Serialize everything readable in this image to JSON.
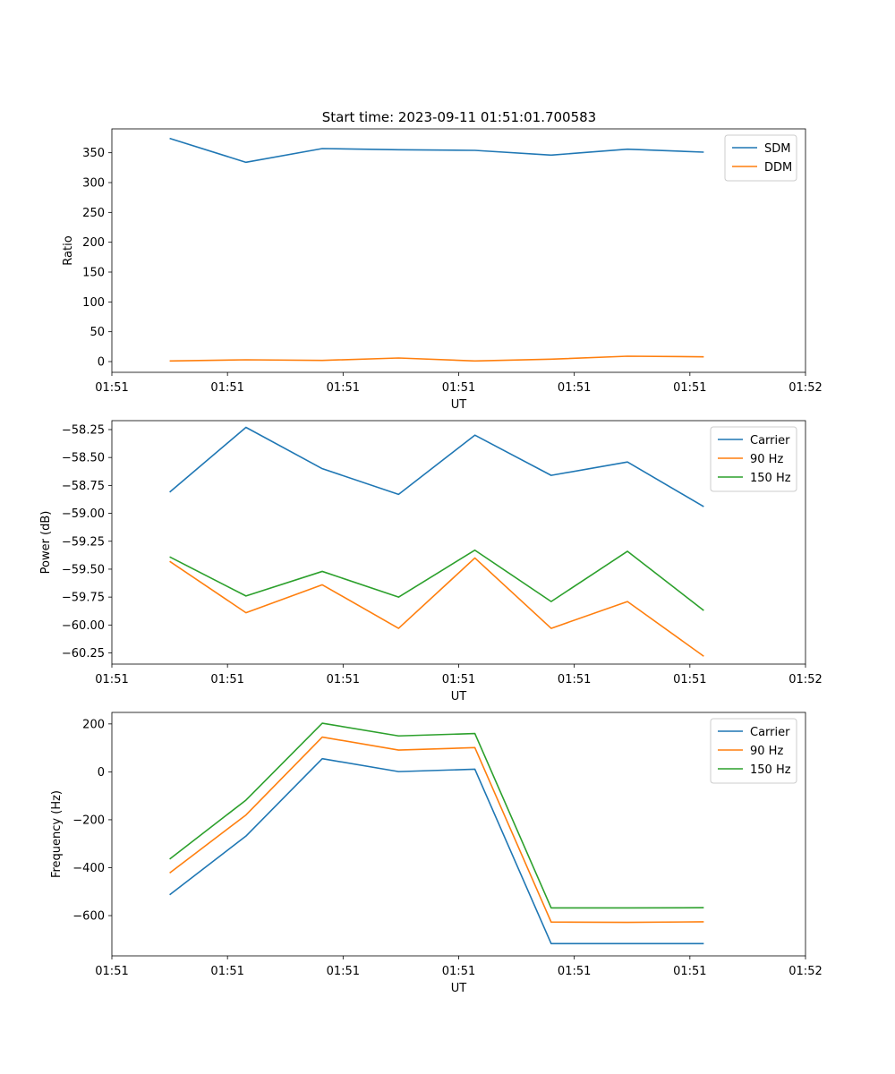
{
  "figure": {
    "title": "Start time: 2023-09-11 01:51:01.700583"
  },
  "chart_data": [
    {
      "type": "line",
      "title": "Start time: 2023-09-11 01:51:01.700583",
      "xlabel": "UT",
      "ylabel": "Ratio",
      "xticklabels": [
        "01:51",
        "01:51",
        "01:51",
        "01:51",
        "01:51",
        "01:51",
        "01:52"
      ],
      "xlim": [
        0,
        6
      ],
      "x": [
        0.5,
        1.16,
        1.82,
        2.48,
        3.14,
        3.8,
        4.46,
        5.12
      ],
      "ylim": [
        -18,
        390
      ],
      "yticks": [
        0,
        50,
        100,
        150,
        200,
        250,
        300,
        350
      ],
      "legend": "top-right",
      "series": [
        {
          "name": "SDM",
          "color": "#1f77b4",
          "values": [
            374,
            334,
            357,
            355,
            354,
            346,
            356,
            351
          ]
        },
        {
          "name": "DDM",
          "color": "#ff7f0e",
          "values": [
            1,
            3,
            2,
            6,
            1,
            4,
            9,
            8
          ]
        }
      ]
    },
    {
      "type": "line",
      "title": "",
      "xlabel": "UT",
      "ylabel": "Power (dB)",
      "xticklabels": [
        "01:51",
        "01:51",
        "01:51",
        "01:51",
        "01:51",
        "01:51",
        "01:52"
      ],
      "xlim": [
        0,
        6
      ],
      "x": [
        0.5,
        1.16,
        1.82,
        2.48,
        3.14,
        3.8,
        4.46,
        5.12
      ],
      "ylim": [
        -60.35,
        -58.17
      ],
      "yticks": [
        -60.25,
        -60.0,
        -59.75,
        -59.5,
        -59.25,
        -59.0,
        -58.75,
        -58.5,
        -58.25
      ],
      "yticklabels": [
        "−60.25",
        "−60.00",
        "−59.75",
        "−59.50",
        "−59.25",
        "−59.00",
        "−58.75",
        "−58.50",
        "−58.25"
      ],
      "legend": "top-right",
      "series": [
        {
          "name": "Carrier",
          "color": "#1f77b4",
          "values": [
            -58.81,
            -58.23,
            -58.6,
            -58.83,
            -58.3,
            -58.66,
            -58.54,
            -58.94
          ]
        },
        {
          "name": "90 Hz",
          "color": "#ff7f0e",
          "values": [
            -59.43,
            -59.89,
            -59.64,
            -60.03,
            -59.4,
            -60.03,
            -59.79,
            -60.28
          ]
        },
        {
          "name": "150 Hz",
          "color": "#2ca02c",
          "values": [
            -59.39,
            -59.74,
            -59.52,
            -59.75,
            -59.33,
            -59.79,
            -59.34,
            -59.87
          ]
        }
      ]
    },
    {
      "type": "line",
      "title": "",
      "xlabel": "UT",
      "ylabel": "Frequency (Hz)",
      "xticklabels": [
        "01:51",
        "01:51",
        "01:51",
        "01:51",
        "01:51",
        "01:51",
        "01:52"
      ],
      "xlim": [
        0,
        6
      ],
      "x": [
        0.5,
        1.16,
        1.82,
        2.48,
        3.14,
        3.8,
        4.46,
        5.12
      ],
      "ylim": [
        -768,
        248
      ],
      "yticks": [
        -600,
        -400,
        -200,
        0,
        200
      ],
      "yticklabels": [
        "−600",
        "−400",
        "−200",
        "0",
        "200"
      ],
      "legend": "top-right",
      "series": [
        {
          "name": "Carrier",
          "color": "#1f77b4",
          "values": [
            -513,
            -268,
            55,
            1,
            11,
            -717,
            -717,
            -717
          ]
        },
        {
          "name": "90 Hz",
          "color": "#ff7f0e",
          "values": [
            -422,
            -180,
            145,
            91,
            101,
            -627,
            -628,
            -626
          ]
        },
        {
          "name": "150 Hz",
          "color": "#2ca02c",
          "values": [
            -364,
            -118,
            203,
            150,
            160,
            -568,
            -568,
            -567
          ]
        }
      ]
    }
  ]
}
